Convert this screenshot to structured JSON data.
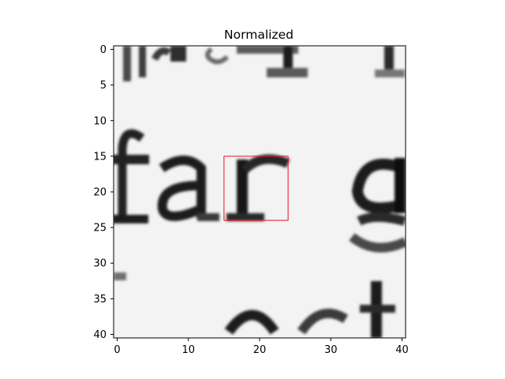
{
  "chart_data": {
    "type": "heatmap",
    "title": "Normalized",
    "xlabel": "",
    "ylabel": "",
    "grid": false,
    "colormap": "gray",
    "xlim": [
      -0.5,
      40.5
    ],
    "ylim": [
      40.5,
      -0.5
    ],
    "x_ticks": [
      0,
      10,
      20,
      30,
      40
    ],
    "y_ticks": [
      0,
      5,
      10,
      15,
      20,
      25,
      30,
      35,
      40
    ],
    "grid_size": [
      41,
      41
    ],
    "image_content": "grayscale crop of printed text: letters 'far' on rows ~15-25, partial 'g' at right edge, fragments of text above and below",
    "annotation": {
      "type": "rectangle",
      "color": "#e8141d",
      "x0": 15,
      "y0": 15,
      "x1": 24,
      "y1": 24
    }
  }
}
